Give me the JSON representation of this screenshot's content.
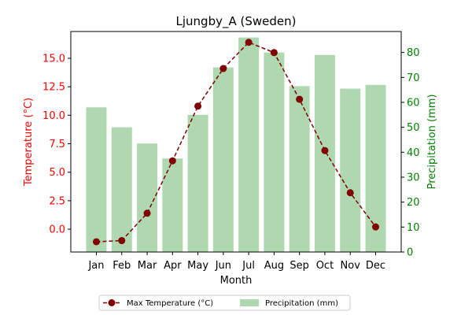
{
  "chart_data": {
    "type": "bar+line",
    "title": "Ljungby_A (Sweden)",
    "xlabel": "Month",
    "y_left_label": "Temperature (°C)",
    "y_right_label": "Precipitation (mm)",
    "categories": [
      "Jan",
      "Feb",
      "Mar",
      "Apr",
      "May",
      "Jun",
      "Jul",
      "Aug",
      "Sep",
      "Oct",
      "Nov",
      "Dec"
    ],
    "series": [
      {
        "name": "Max Temperature (°C)",
        "type": "line",
        "axis": "left",
        "color": "#800000",
        "values": [
          -1.1,
          -1.0,
          1.4,
          6.0,
          10.8,
          14.1,
          16.4,
          15.5,
          11.4,
          6.9,
          3.2,
          0.2
        ]
      },
      {
        "name": "Precipitation (mm)",
        "type": "bar",
        "axis": "right",
        "color": "#b0d8b0",
        "values": [
          58,
          50,
          43.5,
          37.5,
          55,
          74,
          86,
          80,
          66.5,
          79,
          65.5,
          67
        ]
      }
    ],
    "y_left_ticks": [
      "0.0",
      "2.5",
      "5.0",
      "7.5",
      "10.0",
      "12.5",
      "15.0"
    ],
    "y_right_ticks": [
      "0",
      "10",
      "20",
      "30",
      "40",
      "50",
      "60",
      "70",
      "80"
    ],
    "y_left_lim": [
      -2.0,
      17.35
    ],
    "y_right_lim": [
      0,
      88.4
    ],
    "left_axis_color": "#ff0000",
    "right_axis_color": "#008000",
    "legend_position": "bottom-center"
  }
}
